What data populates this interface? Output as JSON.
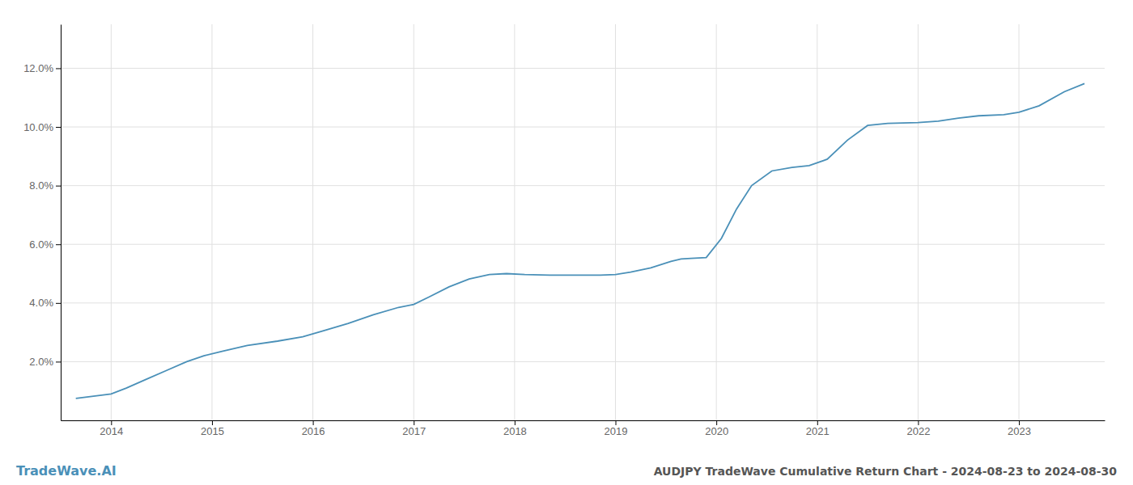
{
  "chart_data": {
    "type": "line",
    "title": "AUDJPY TradeWave Cumulative Return Chart - 2024-08-23 to 2024-08-30",
    "annotations": [
      "TradeWave.AI"
    ],
    "color": "#4a90b8",
    "grid": true,
    "x": [
      2013.65,
      2014.0,
      2014.15,
      2014.35,
      2014.55,
      2014.75,
      2014.92,
      2015.1,
      2015.35,
      2015.65,
      2015.9,
      2016.1,
      2016.35,
      2016.6,
      2016.85,
      2017.0,
      2017.15,
      2017.35,
      2017.55,
      2017.75,
      2017.92,
      2018.1,
      2018.35,
      2018.6,
      2018.85,
      2019.0,
      2019.15,
      2019.35,
      2019.55,
      2019.65,
      2019.75,
      2019.9,
      2020.05,
      2020.2,
      2020.35,
      2020.55,
      2020.75,
      2020.92,
      2021.1,
      2021.3,
      2021.5,
      2021.7,
      2022.0,
      2022.2,
      2022.4,
      2022.6,
      2022.85,
      2023.0,
      2023.2,
      2023.45,
      2023.65
    ],
    "values": [
      0.75,
      0.9,
      1.1,
      1.4,
      1.7,
      2.0,
      2.2,
      2.35,
      2.55,
      2.7,
      2.85,
      3.05,
      3.3,
      3.6,
      3.85,
      3.95,
      4.2,
      4.55,
      4.82,
      4.97,
      5.0,
      4.97,
      4.95,
      4.95,
      4.95,
      4.97,
      5.05,
      5.2,
      5.42,
      5.5,
      5.52,
      5.55,
      6.2,
      7.2,
      8.0,
      8.5,
      8.62,
      8.68,
      8.9,
      9.55,
      10.05,
      10.12,
      10.15,
      10.2,
      10.3,
      10.38,
      10.42,
      10.5,
      10.72,
      11.2,
      11.48
    ],
    "xlim": [
      2013.5,
      2023.85
    ],
    "ylim": [
      0,
      13.5
    ],
    "xticks": [
      2014,
      2015,
      2016,
      2017,
      2018,
      2019,
      2020,
      2021,
      2022,
      2023
    ],
    "yticks": [
      {
        "value": 2.0,
        "label": "2.0%"
      },
      {
        "value": 4.0,
        "label": "4.0%"
      },
      {
        "value": 6.0,
        "label": "6.0%"
      },
      {
        "value": 8.0,
        "label": "8.0%"
      },
      {
        "value": 10.0,
        "label": "10.0%"
      },
      {
        "value": 12.0,
        "label": "12.0%"
      }
    ]
  }
}
